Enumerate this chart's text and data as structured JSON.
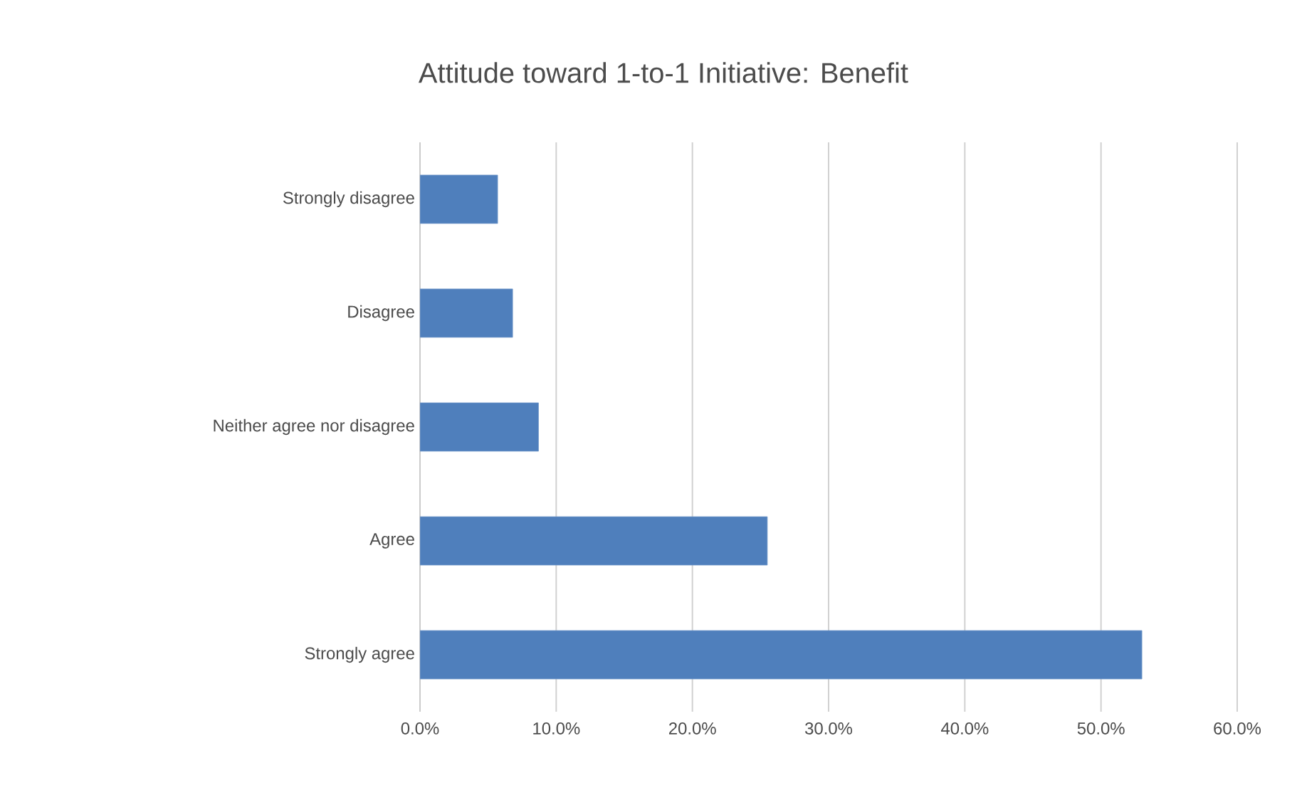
{
  "chart_data": {
    "type": "bar",
    "orientation": "horizontal",
    "title": "Attitude toward 1-to-1 Initiative: Benefit",
    "categories": [
      "Strongly disagree",
      "Disagree",
      "Neither agree nor disagree",
      "Agree",
      "Strongly agree"
    ],
    "values": [
      5.7,
      6.8,
      8.7,
      25.5,
      53.0
    ],
    "color": "#4f7fbc",
    "xlim": [
      0,
      60
    ],
    "xticks": [
      {
        "value": 0,
        "label": "0.0%"
      },
      {
        "value": 10,
        "label": "10.0%"
      },
      {
        "value": 20,
        "label": "20.0%"
      },
      {
        "value": 30,
        "label": "30.0%"
      },
      {
        "value": 40,
        "label": "40.0%"
      },
      {
        "value": 50,
        "label": "50.0%"
      },
      {
        "value": 60,
        "label": "60.0%"
      }
    ],
    "grid": "x"
  }
}
